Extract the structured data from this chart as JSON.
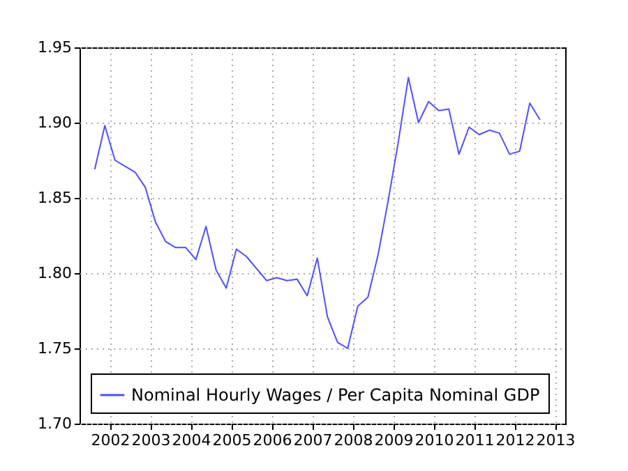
{
  "chart_data": {
    "type": "line",
    "x": [
      2001.625,
      2001.875,
      2002.125,
      2002.375,
      2002.625,
      2002.875,
      2003.125,
      2003.375,
      2003.625,
      2003.875,
      2004.125,
      2004.375,
      2004.625,
      2004.875,
      2005.125,
      2005.375,
      2005.625,
      2005.875,
      2006.125,
      2006.375,
      2006.625,
      2006.875,
      2007.125,
      2007.375,
      2007.625,
      2007.875,
      2008.125,
      2008.375,
      2008.625,
      2008.875,
      2009.125,
      2009.375,
      2009.625,
      2009.875,
      2010.125,
      2010.375,
      2010.625,
      2010.875,
      2011.125,
      2011.375,
      2011.625,
      2011.875,
      2012.125,
      2012.375,
      2012.625
    ],
    "series": [
      {
        "name": "Nominal Hourly Wages / Per Capita Nominal GDP",
        "color": "#4f4fff",
        "values": [
          1.869,
          1.898,
          1.875,
          1.871,
          1.867,
          1.857,
          1.834,
          1.821,
          1.817,
          1.817,
          1.809,
          1.831,
          1.802,
          1.79,
          1.816,
          1.811,
          1.803,
          1.795,
          1.797,
          1.795,
          1.796,
          1.785,
          1.81,
          1.771,
          1.754,
          1.75,
          1.778,
          1.784,
          1.812,
          1.848,
          1.887,
          1.93,
          1.9,
          1.914,
          1.908,
          1.909,
          1.879,
          1.897,
          1.892,
          1.895,
          1.893,
          1.879,
          1.881,
          1.913,
          1.902
        ]
      }
    ],
    "xlim": [
      2001.25,
      2013.25
    ],
    "xticks": [
      2002,
      2003,
      2004,
      2005,
      2006,
      2007,
      2008,
      2009,
      2010,
      2011,
      2012,
      2013
    ],
    "ylim": [
      1.7,
      1.95
    ],
    "yticks": [
      {
        "value": 1.7,
        "label": "1.70"
      },
      {
        "value": 1.75,
        "label": "1.75"
      },
      {
        "value": 1.8,
        "label": "1.80"
      },
      {
        "value": 1.85,
        "label": "1.85"
      },
      {
        "value": 1.9,
        "label": "1.90"
      },
      {
        "value": 1.95,
        "label": "1.95"
      }
    ],
    "grid": true,
    "legend": "bottom left",
    "line_style": "solid",
    "marker": "none"
  }
}
